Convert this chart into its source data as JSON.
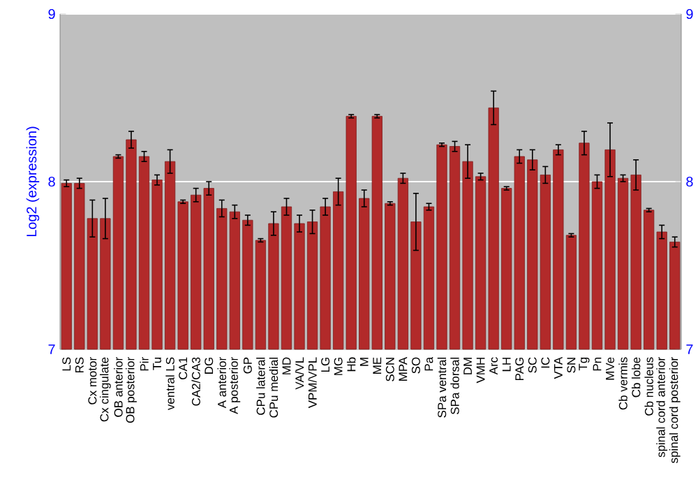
{
  "chart_data": {
    "type": "bar",
    "ylabel": "Log2 (expression)",
    "categories": [
      "LS",
      "RS",
      "Cx motor",
      "Cx cingulate",
      "OB anterior",
      "OB posterior",
      "Pir",
      "Tu",
      "ventral LS",
      "CA1",
      "CA2/CA3",
      "DG",
      "A anterior",
      "A posterior",
      "GP",
      "CPu lateral",
      "CPu medial",
      "MD",
      "VA/VL",
      "VPM/VPL",
      "LG",
      "MG",
      "Hb",
      "M",
      "ME",
      "SCN",
      "MPA",
      "SO",
      "Pa",
      "SPa ventral",
      "SPa dorsal",
      "DM",
      "VMH",
      "Arc",
      "LH",
      "PAG",
      "SC",
      "IC",
      "VTA",
      "SN",
      "Tg",
      "Pn",
      "MVe",
      "Cb vermis",
      "Cb lobe",
      "Cb nucleus",
      "spinal cord anterior",
      "spinal cord posterior"
    ],
    "values": [
      7.99,
      7.99,
      7.78,
      7.78,
      8.15,
      8.25,
      8.15,
      8.01,
      8.12,
      7.88,
      7.92,
      7.96,
      7.84,
      7.82,
      7.77,
      7.65,
      7.75,
      7.85,
      7.75,
      7.76,
      7.85,
      7.94,
      8.39,
      7.9,
      8.39,
      7.87,
      8.02,
      7.76,
      7.85,
      8.22,
      8.21,
      8.12,
      8.03,
      8.44,
      7.96,
      8.15,
      8.13,
      8.04,
      8.19,
      7.68,
      8.23,
      8.0,
      8.19,
      8.02,
      8.04,
      7.83,
      7.7,
      7.64
    ],
    "errors": [
      0.02,
      0.03,
      0.11,
      0.12,
      0.01,
      0.05,
      0.03,
      0.03,
      0.07,
      0.01,
      0.04,
      0.04,
      0.05,
      0.04,
      0.03,
      0.01,
      0.07,
      0.05,
      0.05,
      0.07,
      0.05,
      0.08,
      0.01,
      0.05,
      0.01,
      0.01,
      0.03,
      0.17,
      0.02,
      0.01,
      0.03,
      0.1,
      0.02,
      0.1,
      0.01,
      0.04,
      0.06,
      0.05,
      0.03,
      0.01,
      0.07,
      0.04,
      0.16,
      0.02,
      0.09,
      0.01,
      0.04,
      0.03
    ],
    "color": "#b22a2a",
    "ylim": [
      7,
      9
    ],
    "yticks": [
      7,
      8,
      9
    ],
    "y2lim": [
      7,
      9
    ],
    "y2ticks": [
      7,
      8,
      9
    ],
    "grid": "y"
  }
}
